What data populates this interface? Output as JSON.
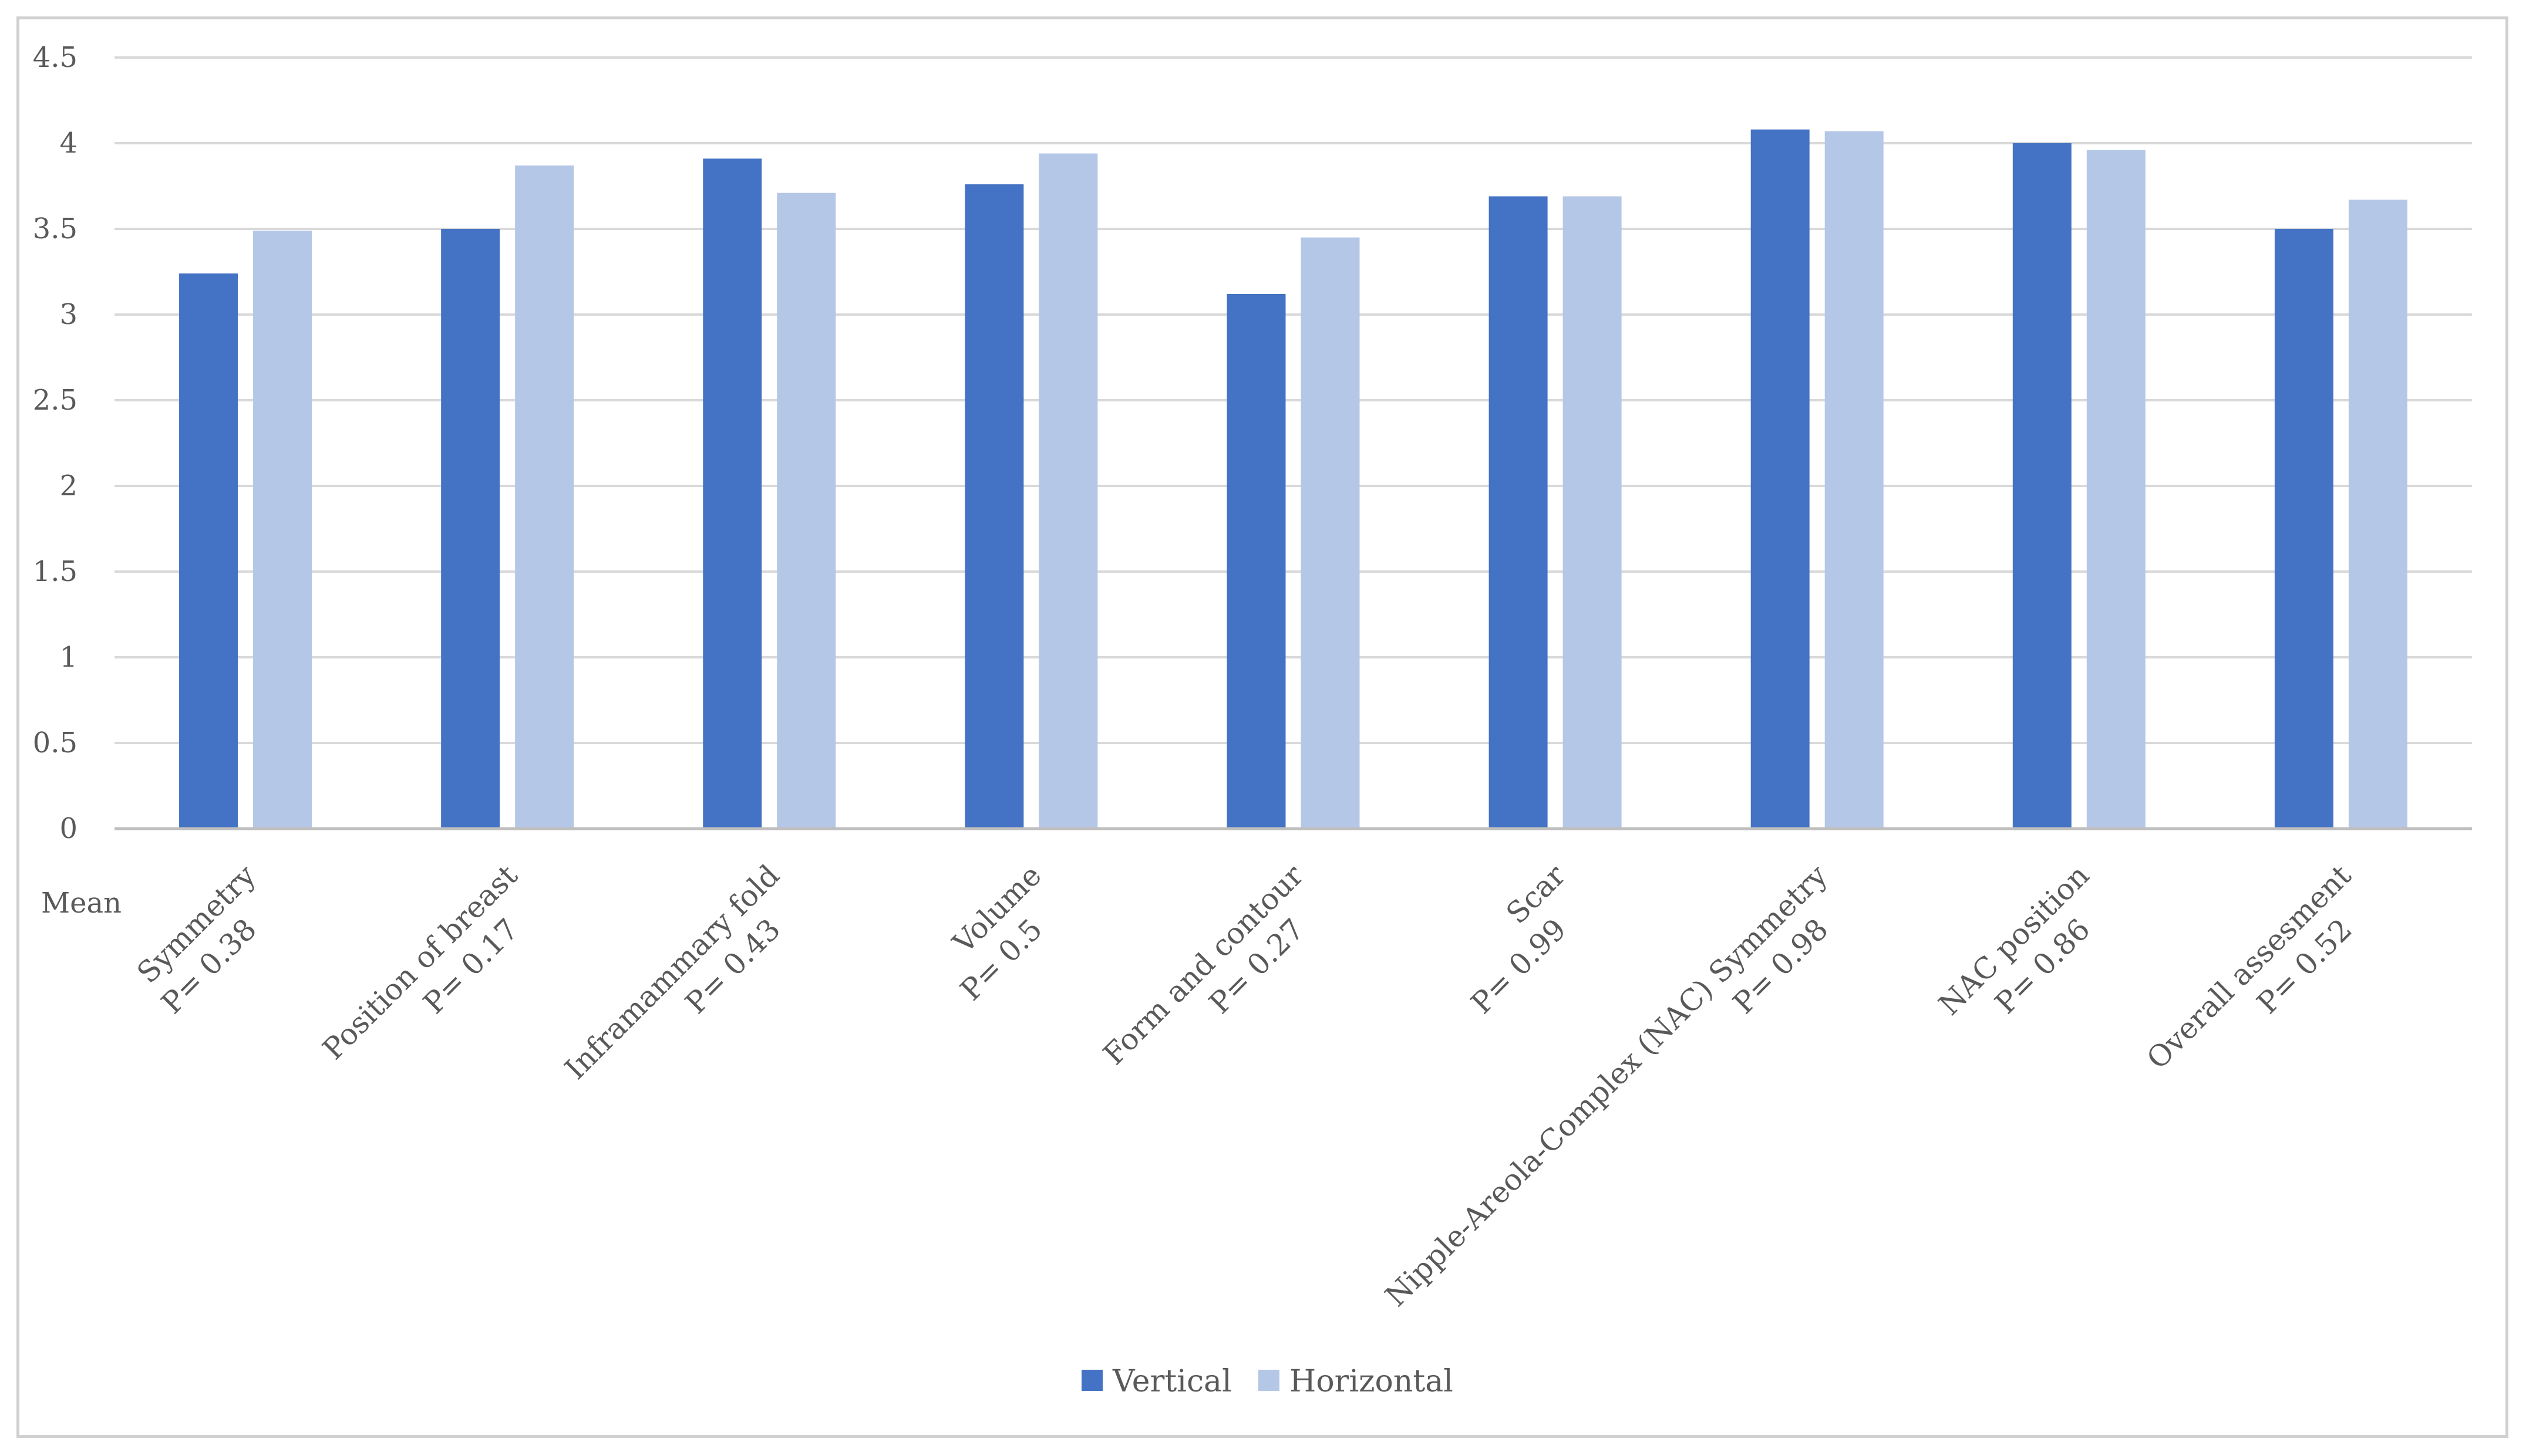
{
  "chart_data": {
    "type": "bar",
    "title": "",
    "xlabel": "",
    "ylabel": "",
    "axis_prefix_label": "Mean",
    "ylim": [
      0,
      4.5
    ],
    "yticks": [
      0,
      0.5,
      1,
      1.5,
      2,
      2.5,
      3,
      3.5,
      4,
      4.5
    ],
    "ytick_labels": [
      "0",
      "0.5",
      "1",
      "1.5",
      "2",
      "2.5",
      "3",
      "3.5",
      "4",
      "4.5"
    ],
    "grid": true,
    "legend_position": "bottom",
    "categories": [
      {
        "name": "Symmetry",
        "p": "P= 0.38"
      },
      {
        "name": "Position of breast",
        "p": "P= 0.17"
      },
      {
        "name": "Inframammary fold",
        "p": "P= 0.43"
      },
      {
        "name": "Volume",
        "p": "P= 0.5"
      },
      {
        "name": "Form and contour",
        "p": "P= 0.27"
      },
      {
        "name": "Scar",
        "p": "P= 0.99"
      },
      {
        "name": "Nipple-Areola-Complex (NAC) Symmetry",
        "p": "P= 0.98"
      },
      {
        "name": "NAC position",
        "p": "P= 0.86"
      },
      {
        "name": "Overall assesment",
        "p": "P= 0.52"
      }
    ],
    "series": [
      {
        "name": "Vertical",
        "color": "#4472c4",
        "values": [
          3.24,
          3.5,
          3.91,
          3.76,
          3.12,
          3.69,
          4.08,
          4.0,
          3.5
        ]
      },
      {
        "name": "Horizontal",
        "color": "#b4c7e7",
        "values": [
          3.49,
          3.87,
          3.71,
          3.94,
          3.45,
          3.69,
          4.07,
          3.96,
          3.67
        ]
      }
    ],
    "colors": {
      "grid": "#d9d9d9",
      "axis": "#bfbfbf",
      "text": "#595959",
      "frame": "#d0d0d0"
    }
  }
}
